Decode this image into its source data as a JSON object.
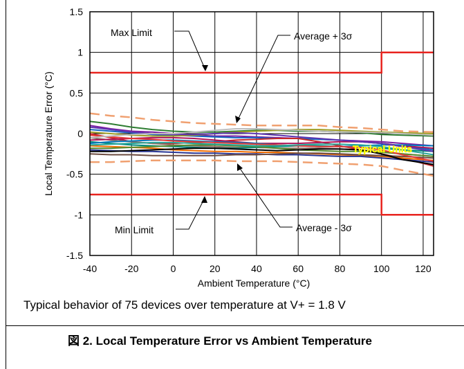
{
  "caption": {
    "note": "Typical behavior of 75 devices over temperature at V+ = 1.8 V",
    "figure": "図 2. Local Temperature Error vs Ambient Temperature"
  },
  "chart_data": {
    "type": "line",
    "xlabel": "Ambient Temperature (°C)",
    "ylabel": "Local Temperature Error (°C)",
    "xlim": [
      -40,
      125
    ],
    "ylim": [
      -1.5,
      1.5
    ],
    "xticks": [
      "-40",
      "-20",
      "0",
      "20",
      "40",
      "60",
      "80",
      "100",
      "120"
    ],
    "yticks": [
      "1.5",
      "1",
      "0.5",
      "0",
      "-0.5",
      "-1",
      "-1.5"
    ],
    "grid": true,
    "colors": {
      "limits": "#e8231e",
      "sigma": "#f0a070",
      "typical_label": "#ffff00"
    },
    "annotations": {
      "max_limit": "Max Limit",
      "min_limit": "Min Limit",
      "avg_plus": "Average + 3σ",
      "avg_minus": "Average - 3σ",
      "typical": "Typical Units"
    },
    "x": [
      -40,
      -30,
      -20,
      -10,
      0,
      10,
      20,
      30,
      40,
      50,
      60,
      70,
      80,
      90,
      100,
      110,
      125
    ],
    "limits": {
      "max": {
        "x": [
          -40,
          100,
          100,
          125
        ],
        "y": [
          0.75,
          0.75,
          1,
          1
        ]
      },
      "min": {
        "x": [
          -40,
          100,
          100,
          125
        ],
        "y": [
          -0.75,
          -0.75,
          -1,
          -1
        ]
      }
    },
    "sigma_bands": {
      "plus": [
        0.25,
        0.22,
        0.2,
        0.17,
        0.15,
        0.13,
        0.12,
        0.11,
        0.1,
        0.1,
        0.1,
        0.1,
        0.08,
        0.07,
        0.05,
        0.03,
        0.02
      ],
      "minus": [
        -0.35,
        -0.35,
        -0.34,
        -0.33,
        -0.33,
        -0.33,
        -0.33,
        -0.34,
        -0.34,
        -0.34,
        -0.35,
        -0.36,
        -0.37,
        -0.38,
        -0.4,
        -0.45,
        -0.52
      ]
    },
    "series": [
      {
        "color": "#2e7d32",
        "values": [
          0.15,
          0.12,
          0.08,
          0.05,
          0.03,
          0.02,
          0.02,
          0.03,
          0.04,
          0.04,
          0.03,
          0.03,
          0.02,
          0.01,
          -0.01,
          -0.02,
          -0.03
        ]
      },
      {
        "color": "#7b1fa2",
        "values": [
          0.1,
          0.06,
          0.03,
          0.02,
          0.0,
          -0.02,
          -0.03,
          -0.03,
          -0.04,
          -0.05,
          -0.06,
          -0.07,
          -0.08,
          -0.09,
          -0.1,
          -0.12,
          -0.15
        ]
      },
      {
        "color": "#1565c0",
        "values": [
          0.05,
          0.03,
          0.01,
          -0.01,
          -0.02,
          -0.03,
          -0.04,
          -0.05,
          -0.05,
          -0.06,
          -0.06,
          -0.07,
          -0.08,
          -0.1,
          -0.12,
          -0.15,
          -0.2
        ]
      },
      {
        "color": "#c62828",
        "values": [
          0.0,
          -0.05,
          -0.1,
          -0.12,
          -0.12,
          -0.11,
          -0.1,
          -0.08,
          -0.07,
          -0.06,
          -0.06,
          -0.1,
          -0.15,
          -0.2,
          -0.25,
          -0.3,
          -0.4
        ]
      },
      {
        "color": "#8d6e63",
        "values": [
          -0.05,
          -0.08,
          -0.1,
          -0.12,
          -0.14,
          -0.15,
          -0.16,
          -0.17,
          -0.17,
          -0.18,
          -0.18,
          -0.18,
          -0.19,
          -0.2,
          -0.22,
          -0.25,
          -0.28
        ]
      },
      {
        "color": "#00897b",
        "values": [
          -0.1,
          -0.12,
          -0.14,
          -0.15,
          -0.16,
          -0.17,
          -0.18,
          -0.18,
          -0.17,
          -0.16,
          -0.15,
          -0.15,
          -0.16,
          -0.17,
          -0.18,
          -0.2,
          -0.22
        ]
      },
      {
        "color": "#ef6c00",
        "values": [
          -0.15,
          -0.16,
          -0.17,
          -0.18,
          -0.2,
          -0.21,
          -0.22,
          -0.22,
          -0.23,
          -0.23,
          -0.24,
          -0.25,
          -0.26,
          -0.27,
          -0.28,
          -0.3,
          -0.33
        ]
      },
      {
        "color": "#283593",
        "values": [
          -0.2,
          -0.21,
          -0.22,
          -0.22,
          -0.23,
          -0.24,
          -0.24,
          -0.25,
          -0.25,
          -0.26,
          -0.26,
          -0.27,
          -0.28,
          -0.28,
          -0.3,
          -0.32,
          -0.35
        ]
      },
      {
        "color": "#6d4c41",
        "values": [
          -0.25,
          -0.26,
          -0.26,
          -0.27,
          -0.27,
          -0.27,
          -0.27,
          -0.26,
          -0.26,
          -0.25,
          -0.24,
          -0.24,
          -0.25,
          -0.26,
          -0.27,
          -0.28,
          -0.3
        ]
      },
      {
        "color": "#9e9d24",
        "values": [
          0.02,
          0.0,
          -0.02,
          -0.03,
          -0.03,
          -0.02,
          0.0,
          0.02,
          0.03,
          0.04,
          0.05,
          0.05,
          0.04,
          0.03,
          0.02,
          0.01,
          0.0
        ]
      },
      {
        "color": "#ad1457",
        "values": [
          -0.08,
          -0.07,
          -0.06,
          -0.05,
          -0.05,
          -0.06,
          -0.08,
          -0.1,
          -0.12,
          -0.12,
          -0.12,
          -0.11,
          -0.1,
          -0.1,
          -0.12,
          -0.15,
          -0.18
        ]
      },
      {
        "color": "#0277bd",
        "values": [
          -0.12,
          -0.1,
          -0.09,
          -0.08,
          -0.08,
          -0.09,
          -0.1,
          -0.11,
          -0.12,
          -0.14,
          -0.15,
          -0.16,
          -0.16,
          -0.15,
          -0.14,
          -0.14,
          -0.15
        ]
      },
      {
        "color": "#558b2f",
        "values": [
          -0.18,
          -0.18,
          -0.17,
          -0.16,
          -0.15,
          -0.14,
          -0.14,
          -0.15,
          -0.16,
          -0.18,
          -0.2,
          -0.21,
          -0.22,
          -0.22,
          -0.23,
          -0.25,
          -0.28
        ]
      },
      {
        "color": "#000000",
        "values": [
          -0.22,
          -0.22,
          -0.21,
          -0.2,
          -0.19,
          -0.18,
          -0.18,
          -0.19,
          -0.2,
          -0.21,
          -0.2,
          -0.19,
          -0.19,
          -0.2,
          -0.25,
          -0.32,
          -0.38
        ]
      },
      {
        "color": "#5e35b1",
        "values": [
          0.08,
          0.05,
          0.02,
          0.0,
          -0.01,
          -0.01,
          0.0,
          0.01,
          0.0,
          -0.02,
          -0.04,
          -0.06,
          -0.08,
          -0.1,
          -0.12,
          -0.16,
          -0.22
        ]
      },
      {
        "color": "#e53935",
        "values": [
          -0.02,
          -0.04,
          -0.06,
          -0.07,
          -0.09,
          -0.1,
          -0.11,
          -0.12,
          -0.13,
          -0.14,
          -0.15,
          -0.16,
          -0.16,
          -0.17,
          -0.2,
          -0.26,
          -0.34
        ]
      },
      {
        "color": "#bdbdbd",
        "values": [
          -0.05,
          -0.03,
          -0.01,
          0.0,
          0.0,
          0.02,
          0.04,
          0.06,
          0.06,
          0.05,
          0.04,
          0.03,
          0.02,
          0.02,
          0.01,
          0.0,
          -0.02
        ]
      },
      {
        "color": "#26a69a",
        "values": [
          -0.14,
          -0.13,
          -0.12,
          -0.11,
          -0.11,
          -0.12,
          -0.13,
          -0.14,
          -0.15,
          -0.15,
          -0.14,
          -0.13,
          -0.13,
          -0.14,
          -0.16,
          -0.2,
          -0.26
        ]
      }
    ]
  }
}
